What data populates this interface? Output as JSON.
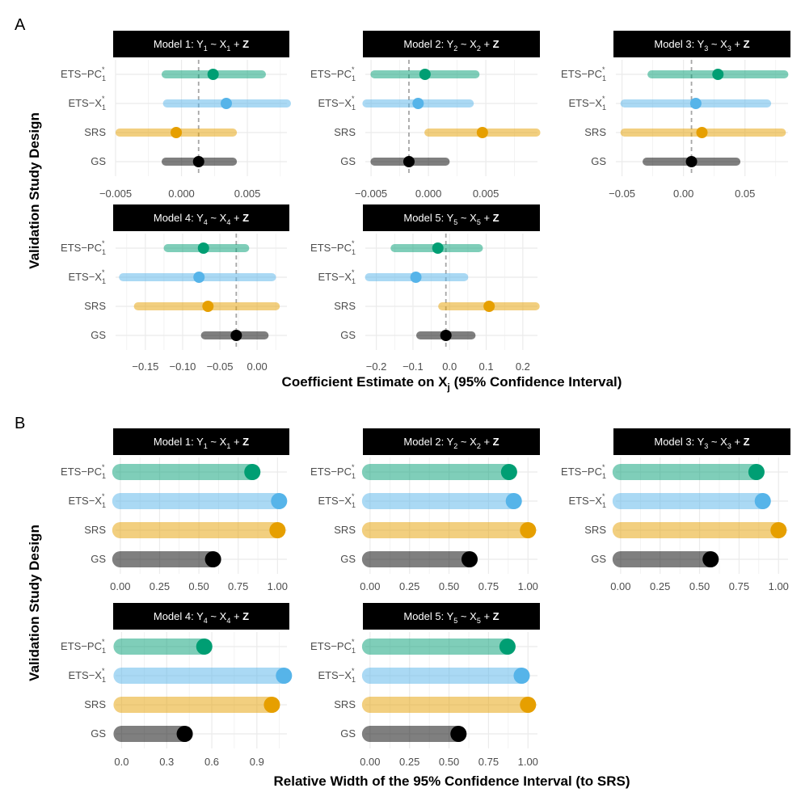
{
  "chart_data": {
    "type": "interval",
    "colors": {
      "ETS-PC1*": "#009E73",
      "ETS-X1*": "#56B4E9",
      "SRS": "#E69F00",
      "GS": "#000000",
      "grid": "#ebebeb",
      "ref_line": "#a6a6a6",
      "strip_bg": "#000000"
    },
    "panels": [
      {
        "tag": "A",
        "ylabel": "Validation Study Design",
        "xlabel_main": "Coefficient Estimate on X",
        "xlabel_sub": "j",
        "xlabel_rest": " (95% Confidence Interval)",
        "facets": [
          {
            "strip": {
              "prefix": "Model 1: ",
              "y_sub": "1",
              "x_sub": "1"
            },
            "xlim": [
              -0.005,
              0.008
            ],
            "ticks": [
              -0.005,
              0.0,
              0.005
            ],
            "tick_labels": [
              "−0.005",
              "0.000",
              "0.005"
            ],
            "ref_line": 0.0013,
            "rows": [
              {
                "design": "ETS-PC1*",
                "estimate": 0.0024,
                "lower": -0.0012,
                "upper": 0.0061
              },
              {
                "design": "ETS-X1*",
                "estimate": 0.0034,
                "lower": -0.0011,
                "upper": 0.008
              },
              {
                "design": "SRS",
                "estimate": -0.0004,
                "lower": -0.0047,
                "upper": 0.0039
              },
              {
                "design": "GS",
                "estimate": 0.0013,
                "lower": -0.0012,
                "upper": 0.0039
              }
            ]
          },
          {
            "strip": {
              "prefix": "Model 2: ",
              "y_sub": "2",
              "x_sub": "2"
            },
            "xlim": [
              -0.0055,
              0.0095
            ],
            "ticks": [
              -0.005,
              0.0,
              0.005
            ],
            "tick_labels": [
              "−0.005",
              "0.000",
              "0.005"
            ],
            "ref_line": -0.0017,
            "rows": [
              {
                "design": "ETS-PC1*",
                "estimate": -0.0003,
                "lower": -0.0047,
                "upper": 0.0041
              },
              {
                "design": "ETS-X1*",
                "estimate": -0.0009,
                "lower": -0.0054,
                "upper": 0.0036
              },
              {
                "design": "SRS",
                "estimate": 0.0047,
                "lower": 0.0,
                "upper": 0.0094
              },
              {
                "design": "GS",
                "estimate": -0.0017,
                "lower": -0.0047,
                "upper": 0.0015
              }
            ]
          },
          {
            "strip": {
              "prefix": "Model 3: ",
              "y_sub": "3",
              "x_sub": "3"
            },
            "xlim": [
              -0.055,
              0.085
            ],
            "ticks": [
              -0.05,
              0.0,
              0.05
            ],
            "tick_labels": [
              "−0.05",
              "0.00",
              "0.05"
            ],
            "ref_line": 0.0065,
            "rows": [
              {
                "design": "ETS-PC1*",
                "estimate": 0.028,
                "lower": -0.026,
                "upper": 0.082
              },
              {
                "design": "ETS-X1*",
                "estimate": 0.01,
                "lower": -0.048,
                "upper": 0.068
              },
              {
                "design": "SRS",
                "estimate": 0.015,
                "lower": -0.048,
                "upper": 0.08
              },
              {
                "design": "GS",
                "estimate": 0.0065,
                "lower": -0.03,
                "upper": 0.043
              }
            ]
          },
          {
            "strip": {
              "prefix": "Model 4: ",
              "y_sub": "4",
              "x_sub": "4"
            },
            "xlim": [
              -0.19,
              0.04
            ],
            "ticks": [
              -0.15,
              -0.1,
              -0.05,
              0.0
            ],
            "tick_labels": [
              "−0.15",
              "−0.10",
              "−0.05",
              "0.00"
            ],
            "ref_line": -0.028,
            "rows": [
              {
                "design": "ETS-PC1*",
                "estimate": -0.072,
                "lower": -0.12,
                "upper": -0.016
              },
              {
                "design": "ETS-X1*",
                "estimate": -0.078,
                "lower": -0.18,
                "upper": 0.02
              },
              {
                "design": "SRS",
                "estimate": -0.066,
                "lower": -0.16,
                "upper": 0.025
              },
              {
                "design": "GS",
                "estimate": -0.028,
                "lower": -0.07,
                "upper": 0.01
              }
            ]
          },
          {
            "strip": {
              "prefix": "Model 5: ",
              "y_sub": "5",
              "x_sub": "5"
            },
            "xlim": [
              -0.23,
              0.24
            ],
            "ticks": [
              -0.2,
              -0.1,
              0.0,
              0.1,
              0.2
            ],
            "tick_labels": [
              "−0.2",
              "−0.1",
              "0.0",
              "0.1",
              "0.2"
            ],
            "ref_line": -0.01,
            "rows": [
              {
                "design": "ETS-PC1*",
                "estimate": -0.032,
                "lower": -0.15,
                "upper": 0.08
              },
              {
                "design": "ETS-X1*",
                "estimate": -0.092,
                "lower": -0.22,
                "upper": 0.04
              },
              {
                "design": "SRS",
                "estimate": 0.108,
                "lower": -0.02,
                "upper": 0.235
              },
              {
                "design": "GS",
                "estimate": -0.01,
                "lower": -0.08,
                "upper": 0.06
              }
            ]
          }
        ]
      },
      {
        "tag": "B",
        "ylabel": "Validation Study Design",
        "xlabel_main": "Relative Width of the 95% Confidence Interval (to SRS)",
        "facets": [
          {
            "strip": {
              "prefix": "Model 1: ",
              "y_sub": "1",
              "x_sub": "1"
            },
            "xlim": [
              -0.03,
              1.06
            ],
            "ticks": [
              0.0,
              0.25,
              0.5,
              0.75,
              1.0
            ],
            "tick_labels": [
              "0.00",
              "0.25",
              "0.50",
              "0.75",
              "1.00"
            ],
            "rows": [
              {
                "design": "ETS-PC1*",
                "value": 0.84
              },
              {
                "design": "ETS-X1*",
                "value": 1.01
              },
              {
                "design": "SRS",
                "value": 1.0
              },
              {
                "design": "GS",
                "value": 0.59
              }
            ]
          },
          {
            "strip": {
              "prefix": "Model 2: ",
              "y_sub": "2",
              "x_sub": "2"
            },
            "xlim": [
              -0.03,
              1.06
            ],
            "ticks": [
              0.0,
              0.25,
              0.5,
              0.75,
              1.0
            ],
            "tick_labels": [
              "0.00",
              "0.25",
              "0.50",
              "0.75",
              "1.00"
            ],
            "rows": [
              {
                "design": "ETS-PC1*",
                "value": 0.88
              },
              {
                "design": "ETS-X1*",
                "value": 0.91
              },
              {
                "design": "SRS",
                "value": 1.0
              },
              {
                "design": "GS",
                "value": 0.63
              }
            ]
          },
          {
            "strip": {
              "prefix": "Model 3: ",
              "y_sub": "3",
              "x_sub": "3"
            },
            "xlim": [
              -0.03,
              1.06
            ],
            "ticks": [
              0.0,
              0.25,
              0.5,
              0.75,
              1.0
            ],
            "tick_labels": [
              "0.00",
              "0.25",
              "0.50",
              "0.75",
              "1.00"
            ],
            "rows": [
              {
                "design": "ETS-PC1*",
                "value": 0.86
              },
              {
                "design": "ETS-X1*",
                "value": 0.9
              },
              {
                "design": "SRS",
                "value": 1.0
              },
              {
                "design": "GS",
                "value": 0.57
              }
            ]
          },
          {
            "strip": {
              "prefix": "Model 4: ",
              "y_sub": "4",
              "x_sub": "4"
            },
            "xlim": [
              -0.04,
              1.1
            ],
            "ticks": [
              0.0,
              0.3,
              0.6,
              0.9
            ],
            "tick_labels": [
              "0.0",
              "0.3",
              "0.6",
              "0.9"
            ],
            "rows": [
              {
                "design": "ETS-PC1*",
                "value": 0.55
              },
              {
                "design": "ETS-X1*",
                "value": 1.08
              },
              {
                "design": "SRS",
                "value": 1.0
              },
              {
                "design": "GS",
                "value": 0.42
              }
            ]
          },
          {
            "strip": {
              "prefix": "Model 5: ",
              "y_sub": "5",
              "x_sub": "5"
            },
            "xlim": [
              -0.03,
              1.06
            ],
            "ticks": [
              0.0,
              0.25,
              0.5,
              0.75,
              1.0
            ],
            "tick_labels": [
              "0.00",
              "0.25",
              "0.50",
              "0.75",
              "1.00"
            ],
            "rows": [
              {
                "design": "ETS-PC1*",
                "value": 0.87
              },
              {
                "design": "ETS-X1*",
                "value": 0.96
              },
              {
                "design": "SRS",
                "value": 1.0
              },
              {
                "design": "GS",
                "value": 0.56
              }
            ]
          }
        ]
      }
    ]
  }
}
